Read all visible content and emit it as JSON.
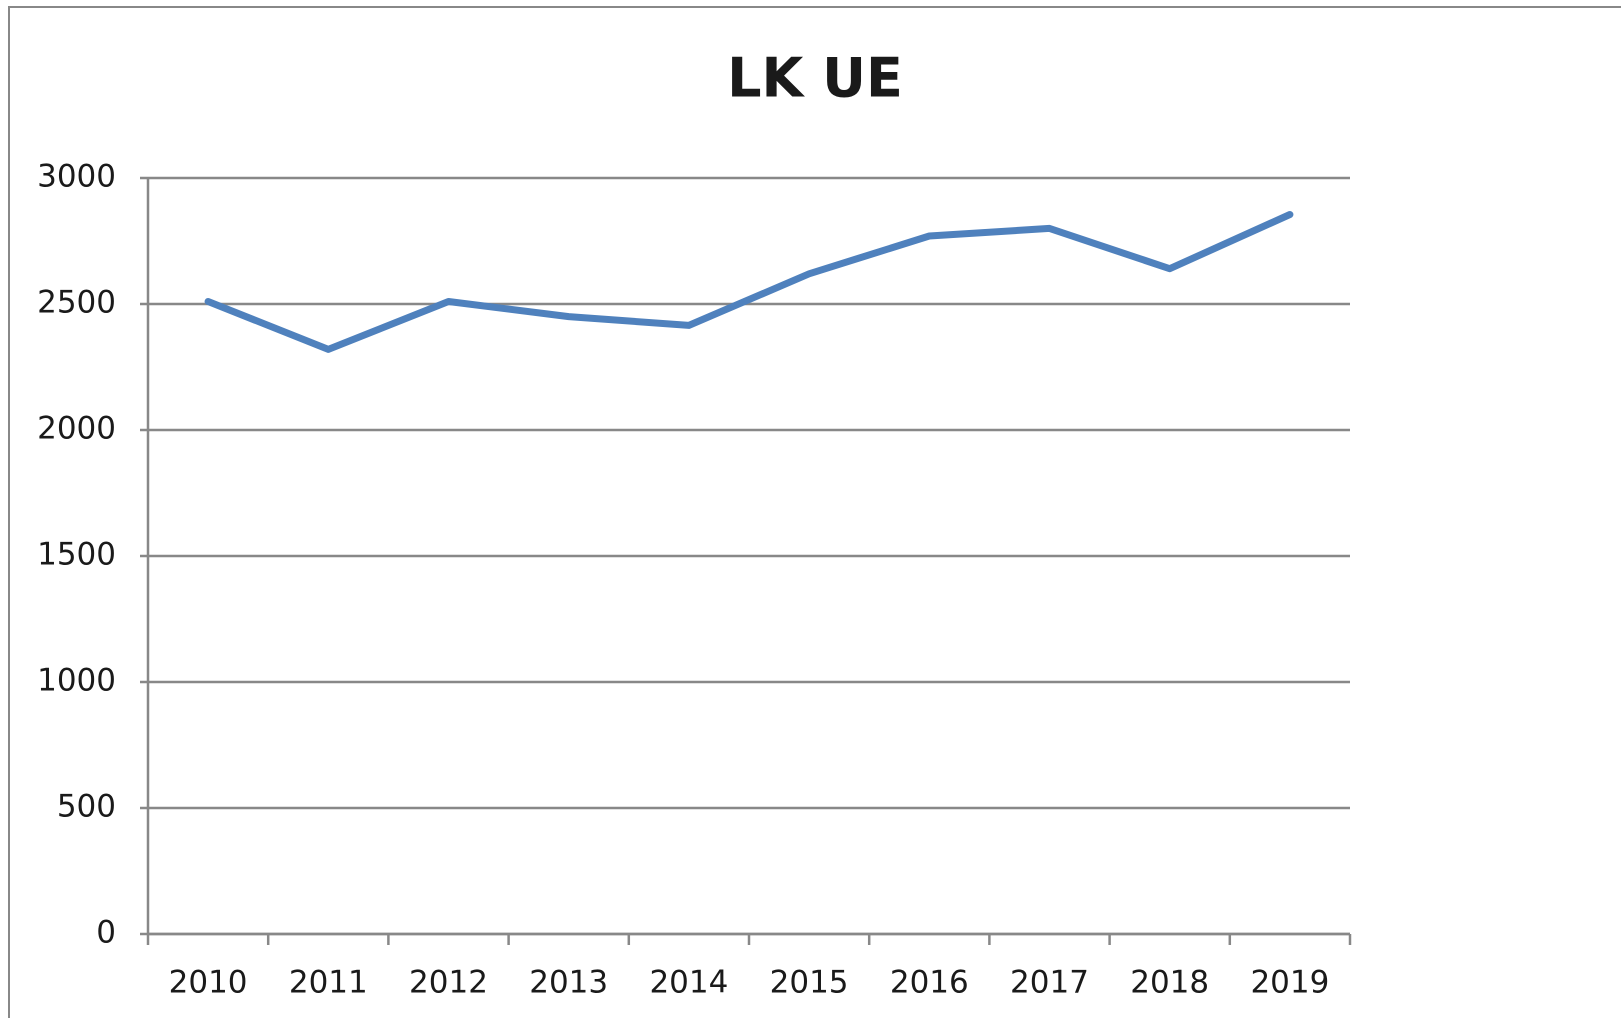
{
  "chart_data": {
    "type": "line",
    "title": "LK UE",
    "categories": [
      "2010",
      "2011",
      "2012",
      "2013",
      "2014",
      "2015",
      "2016",
      "2017",
      "2018",
      "2019"
    ],
    "values": [
      2510,
      2320,
      2510,
      2450,
      2415,
      2620,
      2770,
      2800,
      2640,
      2855
    ],
    "color": "#4f81bd",
    "ylim": [
      0,
      3000
    ],
    "yticks": [
      0,
      500,
      1000,
      1500,
      2000,
      2500,
      3000
    ],
    "grid": true
  }
}
